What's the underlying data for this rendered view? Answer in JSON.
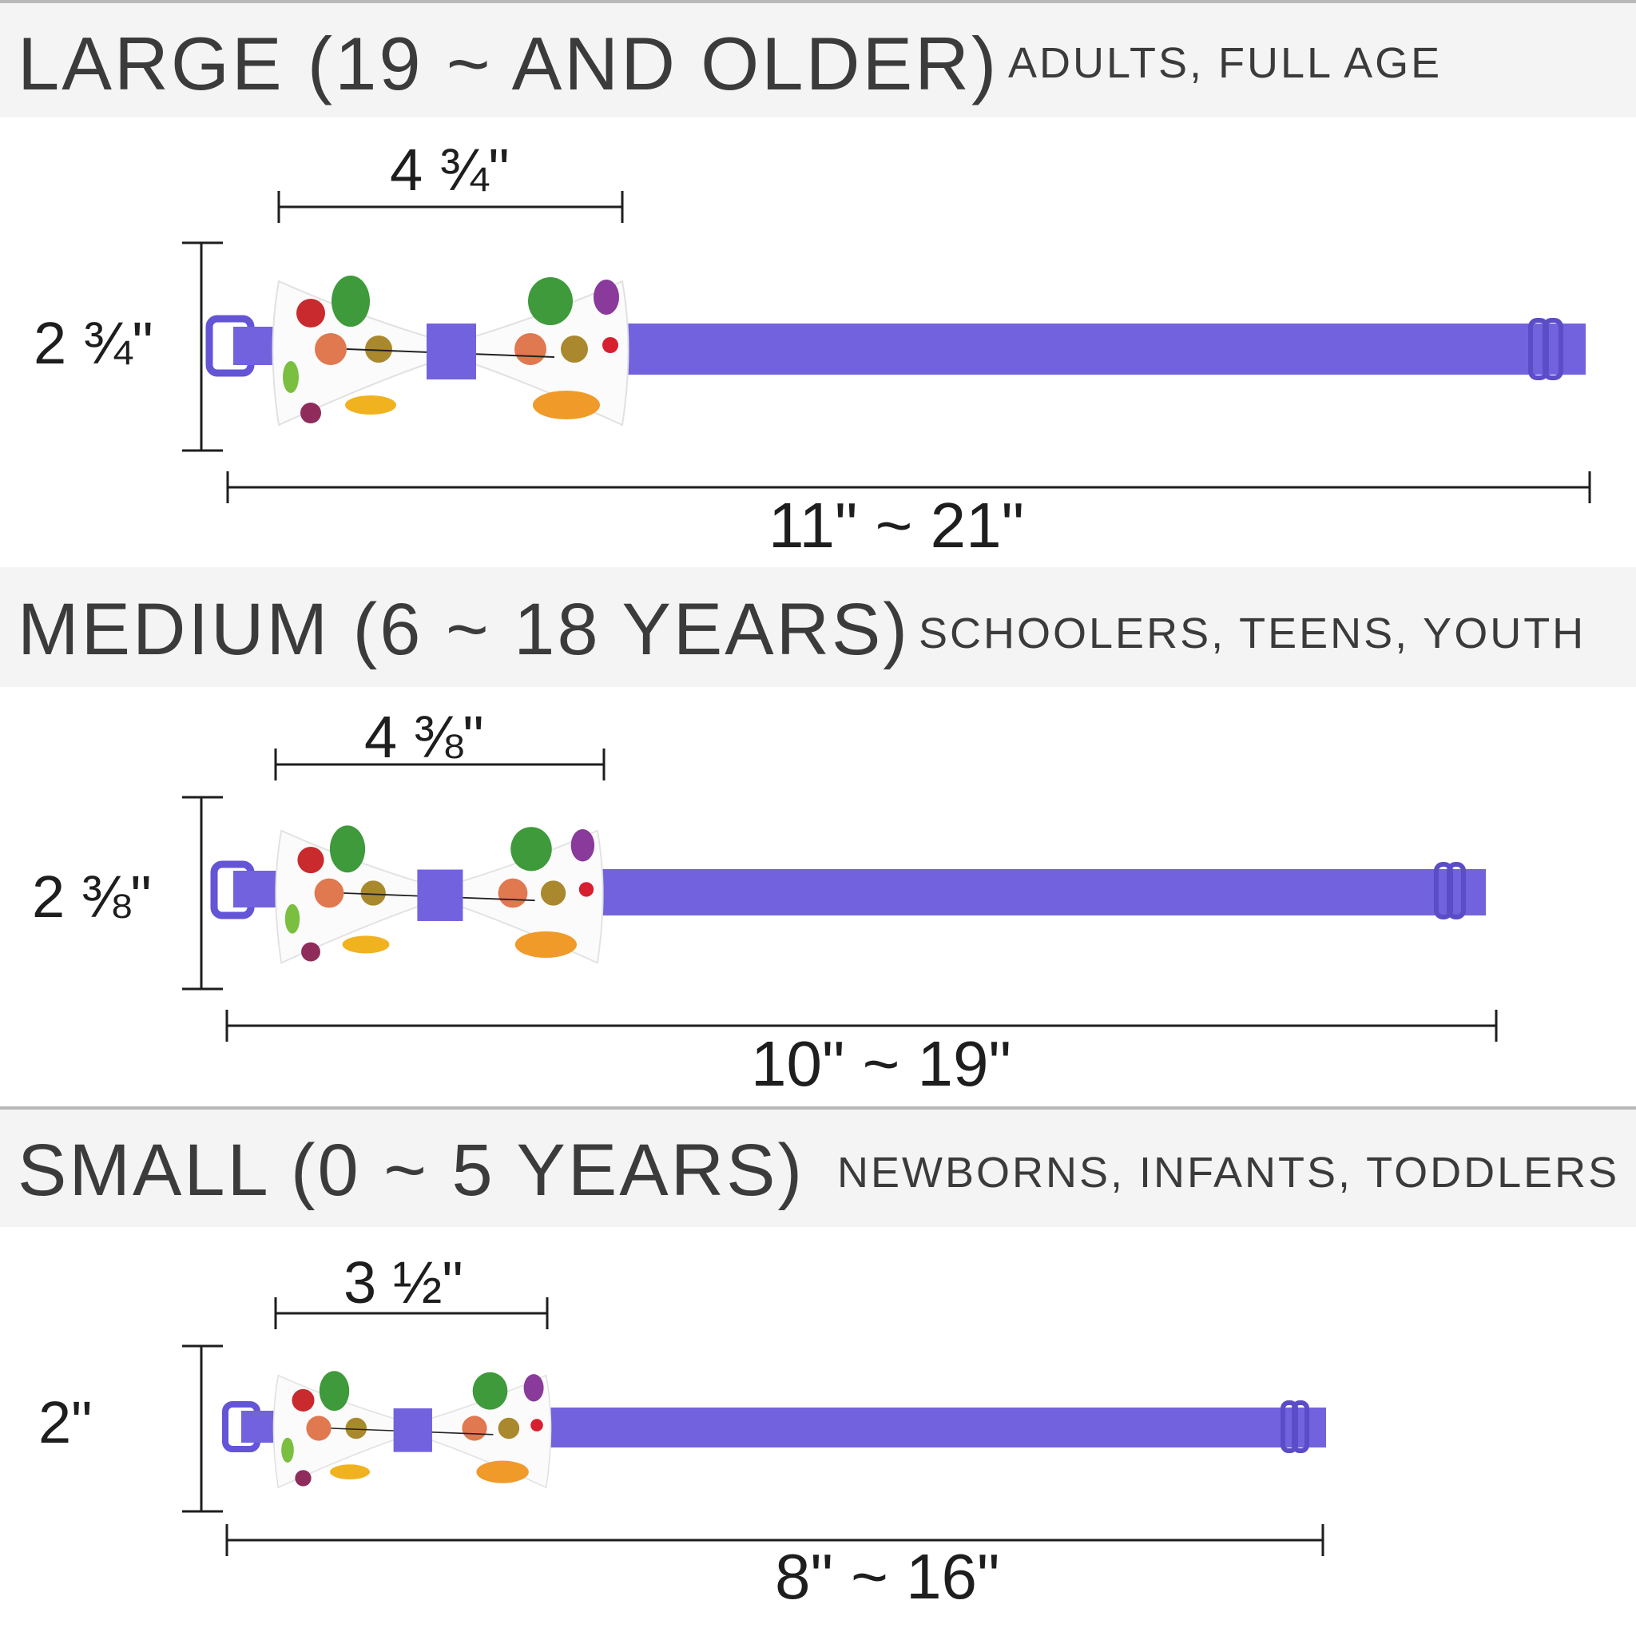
{
  "colors": {
    "strap": "#7262dd",
    "strap_dark": "#5b4cc7",
    "band_bg": "#f4f4f4",
    "rule": "#b8b8b8",
    "text": "#3b3b3b",
    "measure_line": "#1e1e1e"
  },
  "sizes": [
    {
      "title": "LARGE (19 ~ AND OLDER)",
      "subtitle": "ADULTS, FULL AGE",
      "width_label": "4 ¾\"",
      "height_label": "2 ¾\"",
      "strap_label": "11\" ~ 21\"",
      "width_in": 4.75,
      "height_in": 2.75,
      "strap_min_in": 11,
      "strap_max_in": 21
    },
    {
      "title": "MEDIUM (6 ~ 18 YEARS)",
      "subtitle": "SCHOOLERS, TEENS, YOUTH",
      "width_label": "4 ⅜\"",
      "height_label": "2 ⅜\"",
      "strap_label": "10\" ~ 19\"",
      "width_in": 4.375,
      "height_in": 2.375,
      "strap_min_in": 10,
      "strap_max_in": 19
    },
    {
      "title": "SMALL (0 ~ 5 YEARS)",
      "subtitle": "NEWBORNS, INFANTS, TODDLERS",
      "width_label": "3 ½\"",
      "height_label": "2\"",
      "strap_label": "8\" ~ 16\"",
      "width_in": 3.5,
      "height_in": 2,
      "strap_min_in": 8,
      "strap_max_in": 16
    }
  ]
}
